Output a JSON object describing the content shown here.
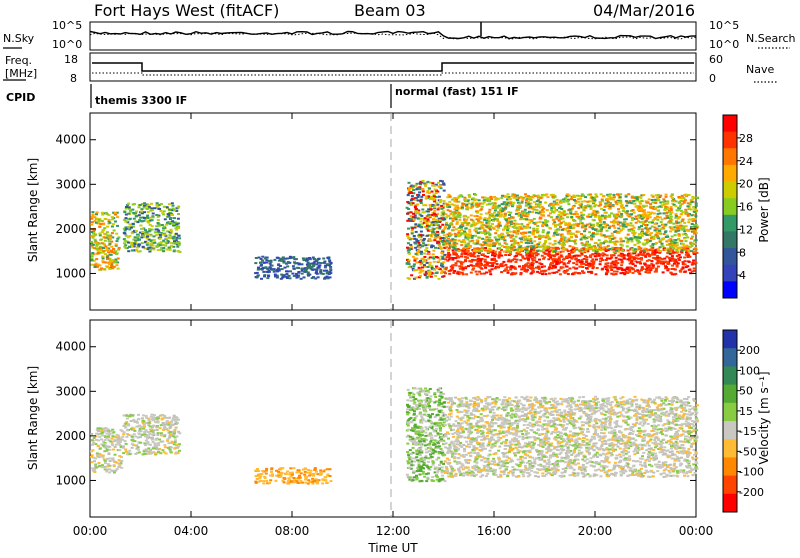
{
  "header": {
    "site": "Fort Hays West (fitACF)",
    "beam": "Beam 03",
    "date": "04/Mar/2016"
  },
  "noise_panel": {
    "left_label": "N.Sky",
    "left_ticks": [
      "10^5",
      "10^0"
    ],
    "right_label": "N.Search",
    "right_ticks": [
      "10^5",
      "10^0"
    ]
  },
  "freq_panel": {
    "left_label_line1": "Freq.",
    "left_label_line2": "[MHz]",
    "left_ticks": [
      "18",
      "8"
    ],
    "right_label": "Nave",
    "right_ticks": [
      "60",
      "0"
    ]
  },
  "cpid_panel": {
    "label": "CPID",
    "modes": [
      "themis 3300 IF",
      "normal (fast) 151 IF"
    ]
  },
  "chart_data": [
    {
      "type": "heatmap",
      "name": "power",
      "ylabel": "Slant Range [km]",
      "yticks": [
        "1000",
        "2000",
        "3000",
        "4000"
      ],
      "xlabel": "Time UT",
      "xticks": [
        "00:00",
        "04:00",
        "08:00",
        "12:00",
        "16:00",
        "20:00",
        "00:00"
      ],
      "colorbar_label": "Power [dB]",
      "colorbar_ticks": [
        "28",
        "24",
        "20",
        "16",
        "12",
        "8",
        "4"
      ],
      "colorbar_colors": [
        "#ff0000",
        "#ff3300",
        "#ff7700",
        "#ffaa00",
        "#cccc00",
        "#88cc22",
        "#339966",
        "#337766",
        "#335599",
        "#3344bb",
        "#0000ff"
      ],
      "regions": [
        {
          "t": [
            0.0,
            1.1
          ],
          "r": [
            1100,
            2400
          ],
          "level": "mid"
        },
        {
          "t": [
            1.3,
            3.5
          ],
          "r": [
            1500,
            2600
          ],
          "level": "mid-low"
        },
        {
          "t": [
            6.5,
            9.5
          ],
          "r": [
            900,
            1400
          ],
          "level": "low"
        },
        {
          "t": [
            12.5,
            14.0
          ],
          "r": [
            900,
            3100
          ],
          "level": "mixed"
        },
        {
          "t": [
            14.0,
            24.0
          ],
          "r": [
            1000,
            1600
          ],
          "level": "high"
        },
        {
          "t": [
            14.0,
            24.0
          ],
          "r": [
            1500,
            2800
          ],
          "level": "mid"
        }
      ]
    },
    {
      "type": "heatmap",
      "name": "velocity",
      "ylabel": "Slant Range [km]",
      "yticks": [
        "1000",
        "2000",
        "3000",
        "4000"
      ],
      "xlabel": "Time UT",
      "xticks": [
        "00:00",
        "04:00",
        "08:00",
        "12:00",
        "16:00",
        "20:00",
        "00:00"
      ],
      "colorbar_label": "Velocity [m s⁻¹]",
      "colorbar_ticks": [
        "200",
        "100",
        "50",
        "15",
        "-15",
        "-50",
        "-100",
        "-200"
      ],
      "colorbar_colors": [
        "#2233aa",
        "#336699",
        "#338855",
        "#55aa33",
        "#88cc44",
        "#c8c8c0",
        "#ffbb33",
        "#ff8800",
        "#ff4400",
        "#ff0000"
      ],
      "regions": [
        {
          "t": [
            0.0,
            1.2
          ],
          "r": [
            1200,
            2200
          ],
          "level": "ground"
        },
        {
          "t": [
            1.2,
            3.5
          ],
          "r": [
            1600,
            2500
          ],
          "level": "ground"
        },
        {
          "t": [
            6.5,
            9.5
          ],
          "r": [
            950,
            1300
          ],
          "level": "negative"
        },
        {
          "t": [
            12.5,
            14.0
          ],
          "r": [
            1000,
            3100
          ],
          "level": "positive"
        },
        {
          "t": [
            14.0,
            24.0
          ],
          "r": [
            1100,
            2900
          ],
          "level": "ground"
        }
      ]
    }
  ]
}
